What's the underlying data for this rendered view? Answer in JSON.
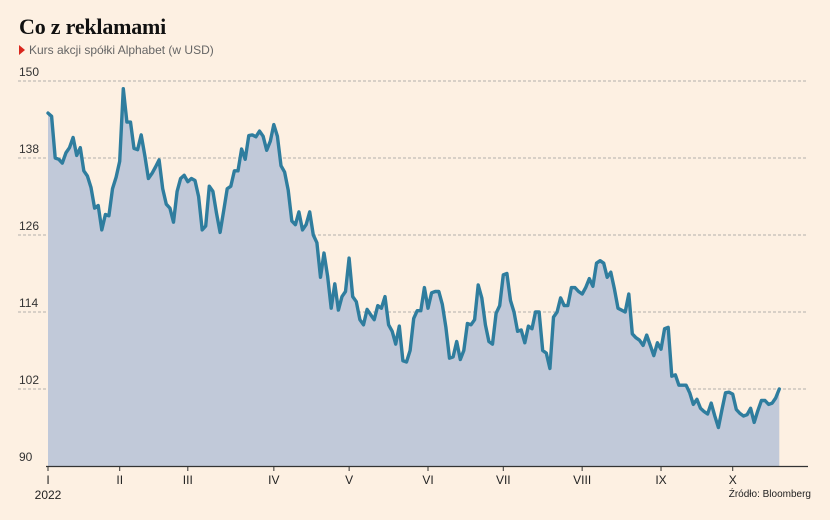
{
  "title": "Co z reklamami",
  "subtitle": "Kurs akcji spółki Alphabet (w USD)",
  "source": "Źródło: Bloomberg",
  "colors": {
    "line": "#2f7d9e",
    "fill": "#c1c9d9",
    "grid": "#9a9a9a",
    "marker": "#d9261c",
    "background": "#fdf0e2"
  },
  "chart_data": {
    "type": "area",
    "title": "Co z reklamami",
    "subtitle": "Kurs akcji spółki Alphabet (w USD)",
    "xlabel": "",
    "ylabel": "",
    "year_label": "2022",
    "ylim": [
      90,
      150
    ],
    "yticks": [
      90,
      102,
      114,
      126,
      138,
      150
    ],
    "x_range": [
      0,
      212
    ],
    "xticks": [
      {
        "label": "I",
        "x": 0
      },
      {
        "label": "II",
        "x": 20
      },
      {
        "label": "III",
        "x": 39
      },
      {
        "label": "IV",
        "x": 63
      },
      {
        "label": "V",
        "x": 84
      },
      {
        "label": "VI",
        "x": 106
      },
      {
        "label": "VII",
        "x": 127
      },
      {
        "label": "VIII",
        "x": 149
      },
      {
        "label": "IX",
        "x": 171
      },
      {
        "label": "X",
        "x": 191
      }
    ],
    "series": [
      {
        "name": "Alphabet",
        "values": [
          145.0,
          144.5,
          138.0,
          137.8,
          137.2,
          138.8,
          139.6,
          141.2,
          138.4,
          139.6,
          136.0,
          135.2,
          133.4,
          130.2,
          130.6,
          126.8,
          129.2,
          129.0,
          133.2,
          135.0,
          137.5,
          148.8,
          143.6,
          143.6,
          139.5,
          139.3,
          141.6,
          138.4,
          134.8,
          135.6,
          136.6,
          137.7,
          133.2,
          130.8,
          130.2,
          128.0,
          132.8,
          134.8,
          135.3,
          134.3,
          134.8,
          134.5,
          132.0,
          126.8,
          127.4,
          133.6,
          132.8,
          129.4,
          126.4,
          129.8,
          133.2,
          133.6,
          136.0,
          136.0,
          139.4,
          137.8,
          141.5,
          141.6,
          141.3,
          142.2,
          141.4,
          139.2,
          140.6,
          143.2,
          141.4,
          136.8,
          135.8,
          133.0,
          128.2,
          127.6,
          129.6,
          126.8,
          127.6,
          129.6,
          126.0,
          124.8,
          119.4,
          123.2,
          119.6,
          114.6,
          118.4,
          114.3,
          116.4,
          117.2,
          122.4,
          116.4,
          115.6,
          112.8,
          112.0,
          114.4,
          113.6,
          112.8,
          115.0,
          114.6,
          116.4,
          112.0,
          111.0,
          109.0,
          111.8,
          106.4,
          106.2,
          108.0,
          113.0,
          114.2,
          114.2,
          117.8,
          114.6,
          117.0,
          117.2,
          117.2,
          115.2,
          111.6,
          106.8,
          107.0,
          109.4,
          106.6,
          108.0,
          112.2,
          112.0,
          112.8,
          118.2,
          116.2,
          112.0,
          109.4,
          109.0,
          113.8,
          115.0,
          119.8,
          120.0,
          115.8,
          114.0,
          111.0,
          111.2,
          109.2,
          111.8,
          111.4,
          114.0,
          114.0,
          108.0,
          107.6,
          105.2,
          113.2,
          114.0,
          116.2,
          115.0,
          115.0,
          117.8,
          117.8,
          117.2,
          116.8,
          117.8,
          119.2,
          118.0,
          121.6,
          122.0,
          121.6,
          119.4,
          120.2,
          117.6,
          114.6,
          114.3,
          114.0,
          116.8,
          110.6,
          110.0,
          109.6,
          108.8,
          110.4,
          108.8,
          107.2,
          109.2,
          108.2,
          111.4,
          111.6,
          104.0,
          104.2,
          102.6,
          102.6,
          102.6,
          101.4,
          99.6,
          100.4,
          99.0,
          98.5,
          98.1,
          99.8,
          97.8,
          96.0,
          98.8,
          101.4,
          101.5,
          101.2,
          98.8,
          98.2,
          97.8,
          98.0,
          99.0,
          96.8,
          98.6,
          100.2,
          100.2,
          99.6,
          99.8,
          100.6,
          102.0
        ]
      }
    ]
  }
}
